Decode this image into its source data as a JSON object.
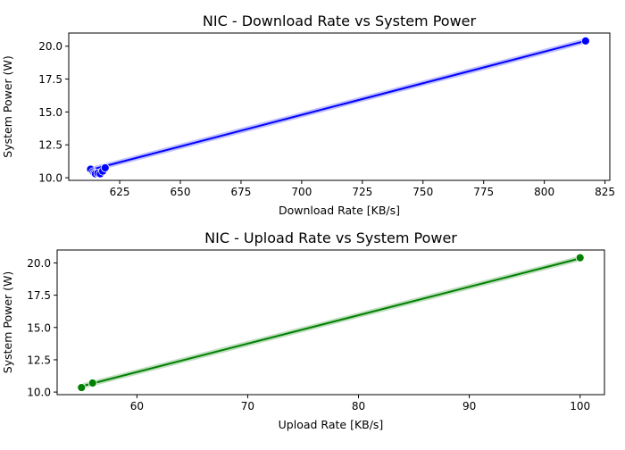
{
  "chart_data": [
    {
      "type": "scatter",
      "title": "NIC - Download Rate vs System Power",
      "xlabel": "Download Rate [KB/s]",
      "ylabel": "System Power (W)",
      "xlim": [
        604,
        827
      ],
      "ylim": [
        9.8,
        21.0
      ],
      "xticks": [
        625,
        650,
        675,
        700,
        725,
        750,
        775,
        800,
        825
      ],
      "yticks": [
        10.0,
        12.5,
        15.0,
        17.5,
        20.0
      ],
      "ytick_labels": [
        "10.0",
        "12.5",
        "15.0",
        "17.5",
        "20.0"
      ],
      "color": "#0000ff",
      "grid": false,
      "series": [
        {
          "x": [
            613,
            614,
            614.5,
            615,
            616,
            617,
            618,
            619,
            817
          ],
          "y": [
            10.65,
            10.45,
            10.35,
            10.3,
            10.35,
            10.3,
            10.5,
            10.75,
            20.4
          ]
        }
      ],
      "fit_line": {
        "x": [
          613,
          817
        ],
        "y": [
          10.6,
          20.4
        ]
      }
    },
    {
      "type": "scatter",
      "title": "NIC - Upload Rate vs System Power",
      "xlabel": "Upload Rate [KB/s]",
      "ylabel": "System Power (W)",
      "xlim": [
        52.8,
        102.2
      ],
      "ylim": [
        9.8,
        21.0
      ],
      "xticks": [
        60,
        70,
        80,
        90,
        100
      ],
      "yticks": [
        10.0,
        12.5,
        15.0,
        17.5,
        20.0
      ],
      "ytick_labels": [
        "10.0",
        "12.5",
        "15.0",
        "17.5",
        "20.0"
      ],
      "color": "#008000",
      "grid": false,
      "series": [
        {
          "x": [
            55,
            56,
            100
          ],
          "y": [
            10.35,
            10.7,
            20.4
          ]
        }
      ],
      "fit_line": {
        "x": [
          55,
          100
        ],
        "y": [
          10.45,
          20.35
        ]
      }
    }
  ]
}
